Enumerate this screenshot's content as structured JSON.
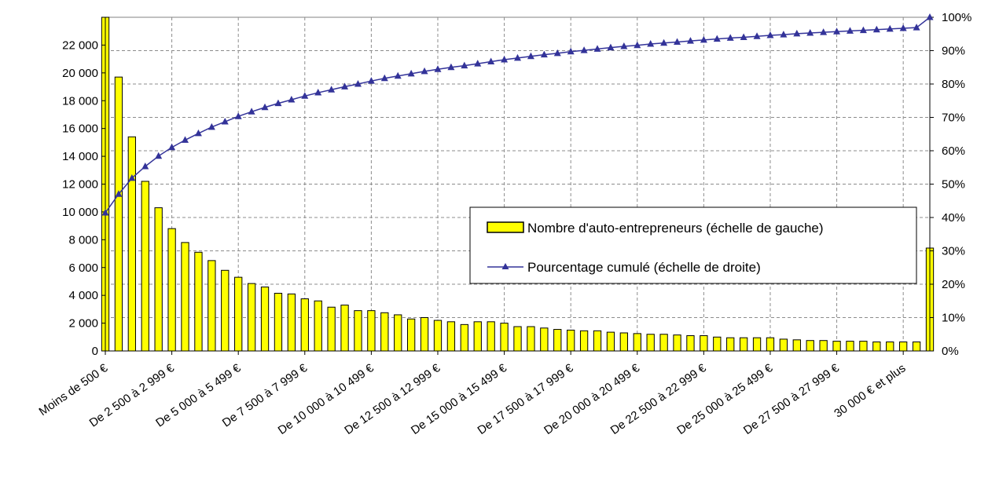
{
  "chart_data": {
    "type": "bar",
    "title": "",
    "xlabel": "",
    "ylabel": "",
    "ylim": [
      0,
      24000
    ],
    "y2lim": [
      0,
      1
    ],
    "grid": true,
    "legend_position": "center-right",
    "y_ticks": [
      {
        "value": 0,
        "label": "0"
      },
      {
        "value": 2000,
        "label": "2 000"
      },
      {
        "value": 4000,
        "label": "4 000"
      },
      {
        "value": 6000,
        "label": "6 000"
      },
      {
        "value": 8000,
        "label": "8 000"
      },
      {
        "value": 10000,
        "label": "10 000"
      },
      {
        "value": 12000,
        "label": "12 000"
      },
      {
        "value": 14000,
        "label": "14 000"
      },
      {
        "value": 16000,
        "label": "16 000"
      },
      {
        "value": 18000,
        "label": "18 000"
      },
      {
        "value": 20000,
        "label": "20 000"
      },
      {
        "value": 22000,
        "label": "22 000"
      }
    ],
    "y2_ticks": [
      {
        "value": 0,
        "label": "0%"
      },
      {
        "value": 0.1,
        "label": "10%"
      },
      {
        "value": 0.2,
        "label": "20%"
      },
      {
        "value": 0.3,
        "label": "30%"
      },
      {
        "value": 0.4,
        "label": "40%"
      },
      {
        "value": 0.5,
        "label": "50%"
      },
      {
        "value": 0.6,
        "label": "60%"
      },
      {
        "value": 0.7,
        "label": "70%"
      },
      {
        "value": 0.8,
        "label": "80%"
      },
      {
        "value": 0.9,
        "label": "90%"
      },
      {
        "value": 1.0,
        "label": "100%"
      }
    ],
    "x_labels": [
      {
        "index": 0,
        "label": "Moins de 500 €"
      },
      {
        "index": 5,
        "label": "De 2 500 à 2 999 €"
      },
      {
        "index": 10,
        "label": "De 5 000 à 5 499 €"
      },
      {
        "index": 15,
        "label": "De 7 500 à 7 999 €"
      },
      {
        "index": 20,
        "label": "De 10 000 à 10 499 €"
      },
      {
        "index": 25,
        "label": "De 12 500 à 12 999 €"
      },
      {
        "index": 30,
        "label": "De 15 000 à 15 499 €"
      },
      {
        "index": 35,
        "label": "De 17 500 à 17 999 €"
      },
      {
        "index": 40,
        "label": "De 20 000 à 20 499 €"
      },
      {
        "index": 45,
        "label": "De 22 500 à 22 999 €"
      },
      {
        "index": 50,
        "label": "De 25 000 à 25 499 €"
      },
      {
        "index": 55,
        "label": "De 27 500 à 27 999 €"
      },
      {
        "index": 60,
        "label": "30 000 € et plus"
      }
    ],
    "series": [
      {
        "name": "Nombre d'auto-entrepreneurs (échelle de gauche)",
        "type": "bar",
        "axis": "left",
        "color": "#FFFF00",
        "values": [
          24000,
          19700,
          15400,
          12200,
          10300,
          8800,
          7800,
          7100,
          6500,
          5800,
          5300,
          4850,
          4600,
          4150,
          4100,
          3750,
          3600,
          3150,
          3300,
          2900,
          2900,
          2750,
          2600,
          2300,
          2400,
          2200,
          2100,
          1900,
          2100,
          2100,
          2000,
          1750,
          1750,
          1650,
          1550,
          1500,
          1450,
          1450,
          1350,
          1300,
          1250,
          1200,
          1200,
          1150,
          1100,
          1100,
          1000,
          950,
          950,
          950,
          950,
          850,
          800,
          750,
          750,
          700,
          700,
          700,
          650,
          650,
          650,
          650,
          7400
        ]
      },
      {
        "name": "Pourcentage cumulé (échelle de droite)",
        "type": "line",
        "axis": "right",
        "color": "#333399",
        "values": [
          0.414,
          0.47,
          0.518,
          0.553,
          0.584,
          0.61,
          0.632,
          0.652,
          0.671,
          0.687,
          0.703,
          0.717,
          0.73,
          0.742,
          0.753,
          0.764,
          0.774,
          0.783,
          0.792,
          0.8,
          0.809,
          0.817,
          0.824,
          0.831,
          0.838,
          0.844,
          0.85,
          0.855,
          0.861,
          0.867,
          0.873,
          0.878,
          0.883,
          0.888,
          0.892,
          0.897,
          0.901,
          0.905,
          0.909,
          0.913,
          0.916,
          0.92,
          0.923,
          0.926,
          0.929,
          0.932,
          0.935,
          0.938,
          0.94,
          0.943,
          0.946,
          0.948,
          0.951,
          0.953,
          0.955,
          0.957,
          0.959,
          0.961,
          0.963,
          0.965,
          0.967,
          0.969,
          1.0
        ]
      }
    ]
  }
}
